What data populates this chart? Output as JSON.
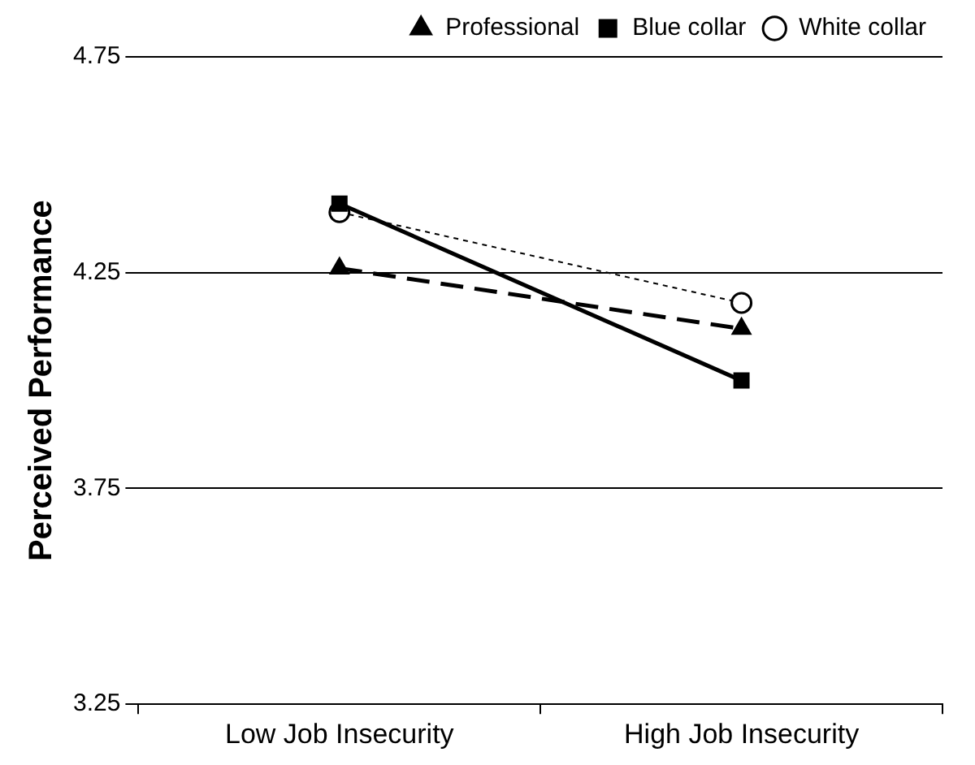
{
  "chart_data": {
    "type": "line",
    "ylabel": "Perceived Performance",
    "categories": [
      "Low Job Insecurity",
      "High Job Insecurity"
    ],
    "series": [
      {
        "name": "White collar",
        "color": "#000000",
        "values": [
          4.39,
          4.18
        ],
        "marker": "circle",
        "line_style": "dotted"
      },
      {
        "name": "Blue collar",
        "color": "#000000",
        "values": [
          4.41,
          4.0
        ],
        "marker": "square",
        "line_style": "solid"
      },
      {
        "name": "Professional",
        "color": "#000000",
        "values": [
          4.26,
          4.12
        ],
        "marker": "triangle",
        "line_style": "dashed"
      }
    ],
    "ylim": [
      3.25,
      4.75
    ],
    "yticks": [
      3.25,
      3.75,
      4.25,
      4.75
    ],
    "grid": "y",
    "legend": "top right"
  }
}
